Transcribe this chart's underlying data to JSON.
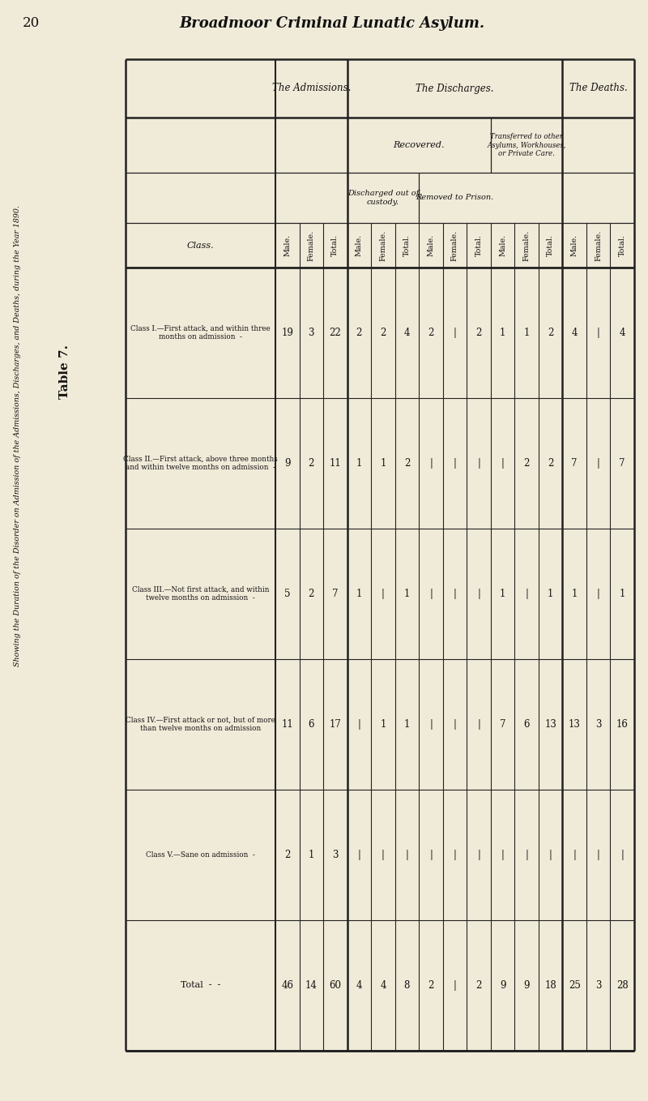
{
  "page_num": "20",
  "header": "Broadmoor Criminal Lunatic Asylum.",
  "table_title": "Table 7.",
  "subtitle": "Showing the Duration of the Disorder on Admission of the Admissions, Discharges, and Deaths, during the Year 1890.",
  "classes": [
    "Class I.—First attack, and within three\nmonths on admission",
    "Class II.—First attack, above three months\nand within twelve months on admission",
    "Class III.—Not first attack, and within\ntwelve months on admission",
    "Class IV.—First attack or not, but of more\nthan twelve months on admission",
    "Class V.—Sane on admission"
  ],
  "raw_data": [
    [
      19,
      3,
      22,
      2,
      2,
      4,
      2,
      "-",
      2,
      1,
      1,
      2,
      4,
      "-",
      4
    ],
    [
      9,
      2,
      11,
      1,
      1,
      2,
      "-",
      "-",
      "-",
      "-",
      2,
      2,
      7,
      "-",
      7
    ],
    [
      5,
      2,
      7,
      1,
      "-",
      1,
      "-",
      "-",
      "-",
      1,
      "-",
      1,
      1,
      "-",
      1
    ],
    [
      11,
      6,
      17,
      "-",
      1,
      1,
      "-",
      "-",
      "-",
      7,
      6,
      13,
      13,
      3,
      16
    ],
    [
      2,
      1,
      3,
      "-",
      "-",
      "-",
      "-",
      "-",
      "-",
      "-",
      "-",
      "-",
      "-",
      "-",
      "-"
    ]
  ],
  "totals_data": [
    46,
    14,
    60,
    4,
    4,
    8,
    2,
    "-",
    2,
    9,
    9,
    18,
    25,
    3,
    28
  ],
  "background_color": "#f0ead8",
  "text_color": "#111111",
  "line_color": "#222222"
}
